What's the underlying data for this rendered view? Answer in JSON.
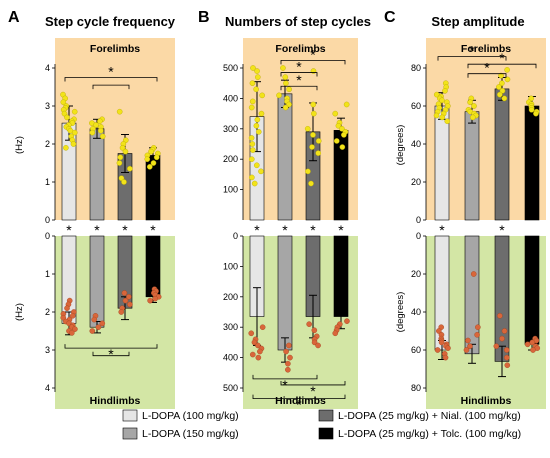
{
  "colors": {
    "forelimb_bg": "#fbd9a6",
    "hindlimb_bg": "#d3e6a5",
    "forelimb_dot": "#f2e31a",
    "hindlimb_dot": "#d9663a",
    "groups": [
      "#e6e6e6",
      "#a6a6a6",
      "#6d6d6d",
      "#000000"
    ]
  },
  "legend": [
    "L-DOPA (100 mg/kg)",
    "L-DOPA (150 mg/kg)",
    "L-DOPA (25 mg/kg) + Nial. (100 mg/kg)",
    "L-DOPA (25 mg/kg) + Tolc. (100 mg/kg)"
  ],
  "chart_data": [
    {
      "type": "bar",
      "panel": "A",
      "title": "Step cycle frequency",
      "top_label": "Forelimbs",
      "bottom_label": "Hindlimbs",
      "ylabel": "(Hz)",
      "top": {
        "ylim": [
          0,
          4
        ],
        "ticks": [
          "0",
          "1",
          "2",
          "3",
          "4"
        ],
        "values": [
          2.55,
          2.4,
          1.75,
          1.7
        ],
        "errors": [
          0.45,
          0.25,
          0.5,
          0.2
        ],
        "points": [
          [
            3.3,
            3.2,
            3.1,
            3.0,
            2.95,
            2.9,
            2.85,
            2.8,
            2.7,
            2.65,
            2.6,
            2.55,
            2.5,
            2.45,
            2.4,
            2.35,
            2.3,
            2.2,
            2.1,
            2.0,
            1.9
          ],
          [
            2.65,
            2.6,
            2.55,
            2.5,
            2.45,
            2.4,
            2.35,
            2.3,
            2.2
          ],
          [
            2.85,
            2.1,
            2.0,
            1.9,
            1.8,
            1.65,
            1.5,
            1.35,
            1.1,
            1.0
          ],
          [
            1.9,
            1.85,
            1.8,
            1.75,
            1.7,
            1.65,
            1.6,
            1.5,
            1.4
          ]
        ],
        "brackets": [
          {
            "from": 0,
            "to": 3,
            "level": 3.75,
            "label": "*"
          },
          {
            "from": 1,
            "to": 2,
            "level": 3.55,
            "label": ""
          }
        ]
      },
      "bottom": {
        "ylim": [
          0,
          4
        ],
        "ticks": [
          "0",
          "1",
          "2",
          "3",
          "4"
        ],
        "values": [
          2.3,
          2.4,
          1.9,
          1.6
        ],
        "errors": [
          0.3,
          0.15,
          0.3,
          0.15
        ],
        "points": [
          [
            1.7,
            1.8,
            1.9,
            2.0,
            2.05,
            2.1,
            2.15,
            2.2,
            2.25,
            2.3,
            2.35,
            2.4,
            2.45,
            2.5,
            2.55
          ],
          [
            2.1,
            2.2,
            2.3,
            2.4,
            2.5
          ],
          [
            1.5,
            1.6,
            1.7,
            1.8,
            1.9,
            2.0
          ],
          [
            1.4,
            1.45,
            1.5,
            1.55,
            1.6,
            1.65,
            1.7
          ]
        ],
        "brackets": [
          {
            "from": 0,
            "to": 3,
            "level": 2.95,
            "label": "*"
          },
          {
            "from": 1,
            "to": 2,
            "level": 3.15,
            "label": ""
          }
        ]
      },
      "separator_stars": [
        "*",
        "*",
        "*",
        "*"
      ]
    },
    {
      "type": "bar",
      "panel": "B",
      "title": "Numbers of step cycles",
      "top_label": "Forelimbs",
      "bottom_label": "Hindlimbs",
      "ylabel": "",
      "top": {
        "ylim": [
          0,
          550
        ],
        "ticks": [
          "100",
          "200",
          "300",
          "400",
          "500"
        ],
        "tick_values": [
          100,
          200,
          300,
          400,
          500
        ],
        "values": [
          340,
          415,
          290,
          295
        ],
        "errors": [
          115,
          45,
          95,
          40
        ],
        "points": [
          [
            500,
            490,
            470,
            450,
            430,
            410,
            390,
            370,
            350,
            330,
            310,
            290,
            270,
            250,
            230,
            200,
            180,
            160,
            140,
            120
          ],
          [
            500,
            470,
            450,
            430,
            410,
            400,
            390,
            380,
            370
          ],
          [
            490,
            380,
            350,
            300,
            280,
            260,
            240,
            220,
            160,
            120
          ],
          [
            380,
            350,
            320,
            310,
            300,
            290,
            280,
            260,
            240
          ]
        ],
        "brackets": [
          {
            "from": 1,
            "to": 3,
            "level": 525,
            "label": "*"
          },
          {
            "from": 1,
            "to": 2,
            "level": 485,
            "label": "*"
          },
          {
            "from": 1,
            "to": 2,
            "level": 440,
            "label": "*"
          }
        ]
      },
      "bottom": {
        "ylim": [
          0,
          550
        ],
        "ticks": [
          "0",
          "100",
          "200",
          "300",
          "400",
          "500"
        ],
        "tick_values": [
          0,
          100,
          200,
          300,
          400,
          500
        ],
        "values": [
          265,
          375,
          265,
          265
        ],
        "errors": [
          95,
          40,
          70,
          40
        ],
        "points": [
          [
            300,
            320,
            340,
            350,
            360,
            370,
            380,
            390,
            400
          ],
          [
            360,
            380,
            400,
            420,
            440
          ],
          [
            290,
            310,
            330,
            340,
            350,
            360
          ],
          [
            280,
            290,
            300,
            310,
            320
          ]
        ],
        "brackets": [
          {
            "from": 0,
            "to": 2,
            "level": 470,
            "label": "*"
          },
          {
            "from": 1,
            "to": 3,
            "level": 490,
            "label": "*"
          },
          {
            "from": 0,
            "to": 3,
            "level": 535,
            "label": "*"
          }
        ]
      },
      "separator_stars": [
        "*",
        "*",
        "*",
        "*"
      ]
    },
    {
      "type": "bar",
      "panel": "C",
      "title": "Step amplitude",
      "top_label": "Forelimbs",
      "bottom_label": "Hindlimbs",
      "ylabel": "(degrees)",
      "top": {
        "ylim": [
          0,
          90
        ],
        "ticks": [
          "0",
          "20",
          "40",
          "60",
          "80"
        ],
        "tick_values": [
          0,
          20,
          40,
          60,
          80
        ],
        "values": [
          60,
          57,
          69,
          60
        ],
        "errors": [
          7,
          6,
          6,
          5
        ],
        "points": [
          [
            72,
            70,
            68,
            66,
            65,
            64,
            63,
            62,
            61,
            60,
            59,
            58,
            57,
            56,
            55,
            54,
            52
          ],
          [
            64,
            62,
            60,
            58,
            57,
            56,
            55,
            54
          ],
          [
            79,
            76,
            74,
            72,
            70,
            68,
            66,
            64
          ],
          [
            64,
            62,
            61,
            60,
            59,
            58,
            57,
            56
          ]
        ],
        "brackets": [
          {
            "from": 0,
            "to": 2,
            "level": 86,
            "label": "*"
          },
          {
            "from": 1,
            "to": 3,
            "level": 82,
            "label": "*"
          },
          {
            "from": 1,
            "to": 2,
            "level": 77,
            "label": "*"
          }
        ]
      },
      "bottom": {
        "ylim": [
          0,
          90
        ],
        "ticks": [
          "0",
          "20",
          "40",
          "60",
          "80"
        ],
        "tick_values": [
          0,
          20,
          40,
          60,
          80
        ],
        "values": [
          60,
          62,
          66,
          57
        ],
        "errors": [
          5,
          5,
          8,
          3
        ],
        "points": [
          [
            48,
            50,
            52,
            54,
            55,
            56,
            57,
            58,
            59,
            60,
            62,
            64
          ],
          [
            20,
            48,
            52,
            55,
            58,
            60
          ],
          [
            42,
            50,
            54,
            58,
            60,
            64,
            68
          ],
          [
            54,
            55,
            56,
            57,
            58,
            59,
            60
          ]
        ],
        "brackets": []
      },
      "separator_stars": [
        "*",
        "",
        "*",
        ""
      ]
    }
  ]
}
